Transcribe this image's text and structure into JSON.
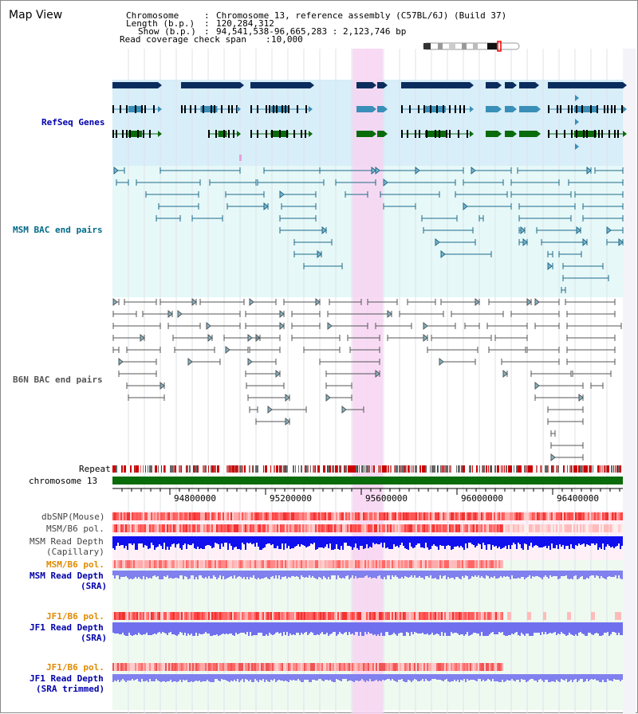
{
  "page": {
    "title": "Map View"
  },
  "info": {
    "chromosome_label": "Chromosome",
    "chromosome_value": "Chromosome 13, reference assembly (C57BL/6J) (Build 37)",
    "length_label": "Length (b.p.)",
    "length_value": "120,284,312",
    "show_label": "Show (b.p.)",
    "show_value": "94,541,538-96,665,283 : 2,123,746 bp",
    "coverage_label": "Read coverage check span",
    "coverage_value": "10,000"
  },
  "tracks": {
    "refseq": "RefSeq Genes",
    "msm_bac": "MSM BAC end pairs",
    "b6n_bac": "B6N BAC end pairs",
    "repeat": "Repeat",
    "chromosome": "chromosome 13",
    "dbsnp": "dbSNP(Mouse)",
    "msm_b6_pol": "MSM/B6 pol.",
    "msm_depth_cap_1": "MSM Read Depth",
    "msm_depth_cap_2": "(Capillary)",
    "msm_b6_pol_2": "MSM/B6 pol.",
    "msm_depth_sra_1": "MSM Read Depth",
    "msm_depth_sra_2": "(SRA)",
    "jf1_b6_pol": "JF1/B6 pol.",
    "jf1_depth_1": "JF1 Read Depth",
    "jf1_depth_2": "(SRA)",
    "jf1_b6_pol_2": "JF1/B6 pol.",
    "jf1_trim_1": "JF1 Read Depth",
    "jf1_trim_2": "(SRA trimmed)"
  },
  "axis": {
    "ticks": [
      "94800000",
      "95200000",
      "95600000",
      "96000000",
      "96400000"
    ]
  },
  "colors": {
    "gene_dark": "#0b2d5e",
    "gene_teal": "#3a8fb8",
    "gene_green": "#0a6b0a",
    "msm_bac": "#1f6a8a",
    "b6n_bac": "#555555",
    "refseq_bg": "#d8eef9",
    "msm_bg": "#e6f8f8",
    "highlight": "#f7d4f2",
    "label_blue": "#0000aa",
    "label_teal": "#006a88",
    "label_orange": "#e08a00"
  }
}
